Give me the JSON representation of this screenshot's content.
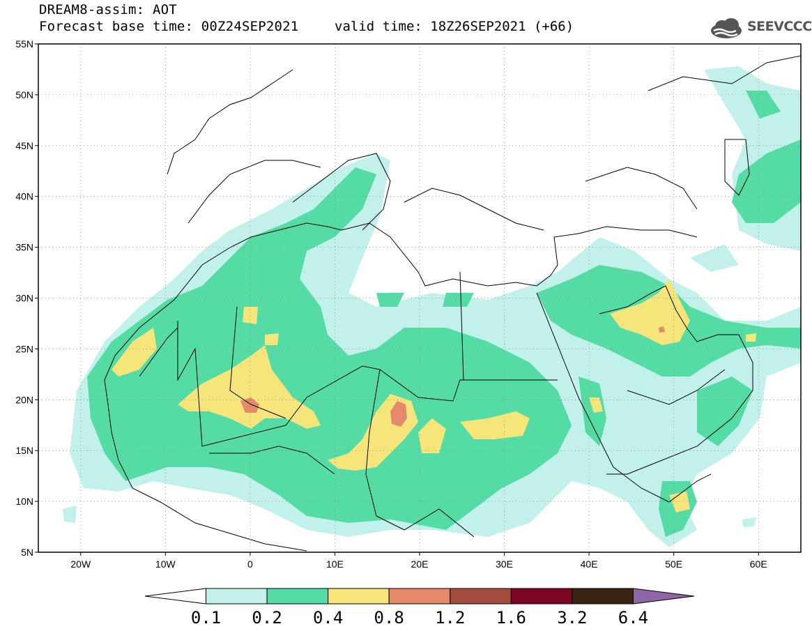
{
  "header": {
    "model_line": "DREAM8-assim: AOT",
    "base_time_line": "Forecast base time: 00Z24SEP2021",
    "valid_time_line": "valid time: 18Z26SEP2021 (+66)",
    "logo_text": "SEEVCCC"
  },
  "map": {
    "lon_range": [
      -25,
      65
    ],
    "lat_range": [
      5,
      55
    ],
    "lat_ticks": [
      {
        "value": 55,
        "label": "55N"
      },
      {
        "value": 50,
        "label": "50N"
      },
      {
        "value": 45,
        "label": "45N"
      },
      {
        "value": 40,
        "label": "40N"
      },
      {
        "value": 35,
        "label": "35N"
      },
      {
        "value": 30,
        "label": "30N"
      },
      {
        "value": 25,
        "label": "25N"
      },
      {
        "value": 20,
        "label": "20N"
      },
      {
        "value": 15,
        "label": "15N"
      },
      {
        "value": 10,
        "label": "10N"
      },
      {
        "value": 5,
        "label": "5N"
      }
    ],
    "lon_ticks": [
      {
        "value": -20,
        "label": "20W"
      },
      {
        "value": -10,
        "label": "10W"
      },
      {
        "value": 0,
        "label": "0"
      },
      {
        "value": 10,
        "label": "10E"
      },
      {
        "value": 20,
        "label": "20E"
      },
      {
        "value": 30,
        "label": "30E"
      },
      {
        "value": 40,
        "label": "40E"
      },
      {
        "value": 50,
        "label": "50E"
      },
      {
        "value": 60,
        "label": "60E"
      }
    ],
    "grid": true
  },
  "colorbar": {
    "levels": [
      "0.1",
      "0.2",
      "0.4",
      "0.8",
      "1.2",
      "1.6",
      "3.2",
      "6.4"
    ],
    "colors": [
      "#ffffff",
      "#c2f1eb",
      "#54dca4",
      "#f5e57a",
      "#e6896a",
      "#a34b3d",
      "#7d0625",
      "#3a2513",
      "#9066a8"
    ]
  }
}
